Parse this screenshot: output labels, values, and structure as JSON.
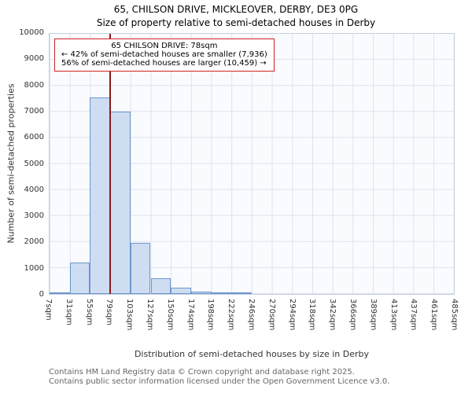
{
  "title": {
    "line1": "65, CHILSON DRIVE, MICKLEOVER, DERBY, DE3 0PG",
    "line2": "Size of property relative to semi-detached houses in Derby"
  },
  "annotation": {
    "line1": "65 CHILSON DRIVE: 78sqm",
    "line2": "← 42% of semi-detached houses are smaller (7,936)",
    "line3": "56% of semi-detached houses are larger (10,459) →"
  },
  "footer": {
    "line1": "Contains HM Land Registry data © Crown copyright and database right 2025.",
    "line2": "Contains public sector information licensed under the Open Government Licence v3.0."
  },
  "chart_data": {
    "type": "bar",
    "title": "65, CHILSON DRIVE, MICKLEOVER, DERBY, DE3 0PG — Size of property relative to semi-detached houses in Derby",
    "xlabel": "Distribution of semi-detached houses by size in Derby",
    "ylabel": "Number of semi-detached properties",
    "ylim": [
      0,
      10000
    ],
    "grid": true,
    "legend_position": "none",
    "y_ticks": [
      0,
      1000,
      2000,
      3000,
      4000,
      5000,
      6000,
      7000,
      8000,
      9000,
      10000
    ],
    "bin_edges_sqm": [
      7,
      31,
      55,
      79,
      103,
      127,
      150,
      174,
      198,
      222,
      246,
      270,
      294,
      318,
      342,
      366,
      389,
      413,
      437,
      461,
      485
    ],
    "x_tick_labels": [
      "7sqm",
      "31sqm",
      "55sqm",
      "79sqm",
      "103sqm",
      "127sqm",
      "150sqm",
      "174sqm",
      "198sqm",
      "222sqm",
      "246sqm",
      "270sqm",
      "294sqm",
      "318sqm",
      "342sqm",
      "366sqm",
      "389sqm",
      "413sqm",
      "437sqm",
      "461sqm",
      "485sqm"
    ],
    "values": [
      30,
      1200,
      7550,
      7000,
      1950,
      600,
      250,
      100,
      50,
      25,
      0,
      0,
      0,
      0,
      0,
      0,
      0,
      0,
      0,
      0
    ],
    "marker": {
      "label": "65 CHILSON DRIVE",
      "value_sqm": 78,
      "axis_min": 7,
      "axis_max": 485
    },
    "smaller_count": "7,936",
    "smaller_pct": "42%",
    "larger_count": "10,459",
    "larger_pct": "56%",
    "colors": {
      "bar_fill": "#cfddf2",
      "bar_border": "#6b96cc",
      "marker_line": "#8b1a1a",
      "annotation_border": "#cc2222",
      "grid": "#dbe3ef"
    }
  }
}
